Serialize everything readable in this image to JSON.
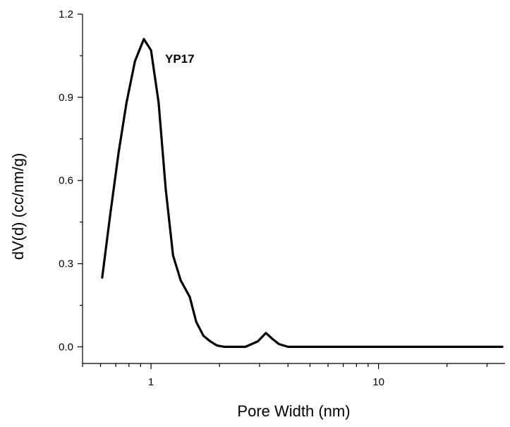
{
  "chart_data": {
    "type": "line",
    "title": "",
    "xlabel": "Pore Width (nm)",
    "ylabel": "dV(d) (cc/nm/g)",
    "xscale": "log",
    "xlim": [
      0.5,
      36
    ],
    "ylim": [
      -0.06,
      1.2
    ],
    "xticks": [
      {
        "value": 1,
        "label": "1"
      },
      {
        "value": 10,
        "label": "10"
      }
    ],
    "yticks": [
      {
        "value": 0.0,
        "label": "0.0"
      },
      {
        "value": 0.3,
        "label": "0.3"
      },
      {
        "value": 0.6,
        "label": "0.6"
      },
      {
        "value": 0.9,
        "label": "0.9"
      },
      {
        "value": 1.2,
        "label": "1.2"
      }
    ],
    "grid": false,
    "series": [
      {
        "annotation": "YP17",
        "x": [
          0.61,
          0.66,
          0.72,
          0.78,
          0.85,
          0.93,
          1.0,
          1.08,
          1.16,
          1.25,
          1.35,
          1.48,
          1.58,
          1.7,
          1.82,
          1.95,
          2.1,
          2.3,
          2.6,
          2.95,
          3.2,
          3.4,
          3.65,
          4.0,
          5.0,
          7.0,
          10.0,
          15.0,
          20.0,
          25.0,
          30.0,
          35.0
        ],
        "y": [
          0.25,
          0.47,
          0.7,
          0.88,
          1.03,
          1.11,
          1.07,
          0.88,
          0.57,
          0.33,
          0.24,
          0.18,
          0.09,
          0.04,
          0.02,
          0.005,
          0.0,
          0.0,
          0.0,
          0.02,
          0.05,
          0.03,
          0.01,
          0.0,
          0.0,
          0.0,
          0.0,
          0.0,
          0.0,
          0.0,
          0.0,
          0.0
        ]
      }
    ]
  }
}
